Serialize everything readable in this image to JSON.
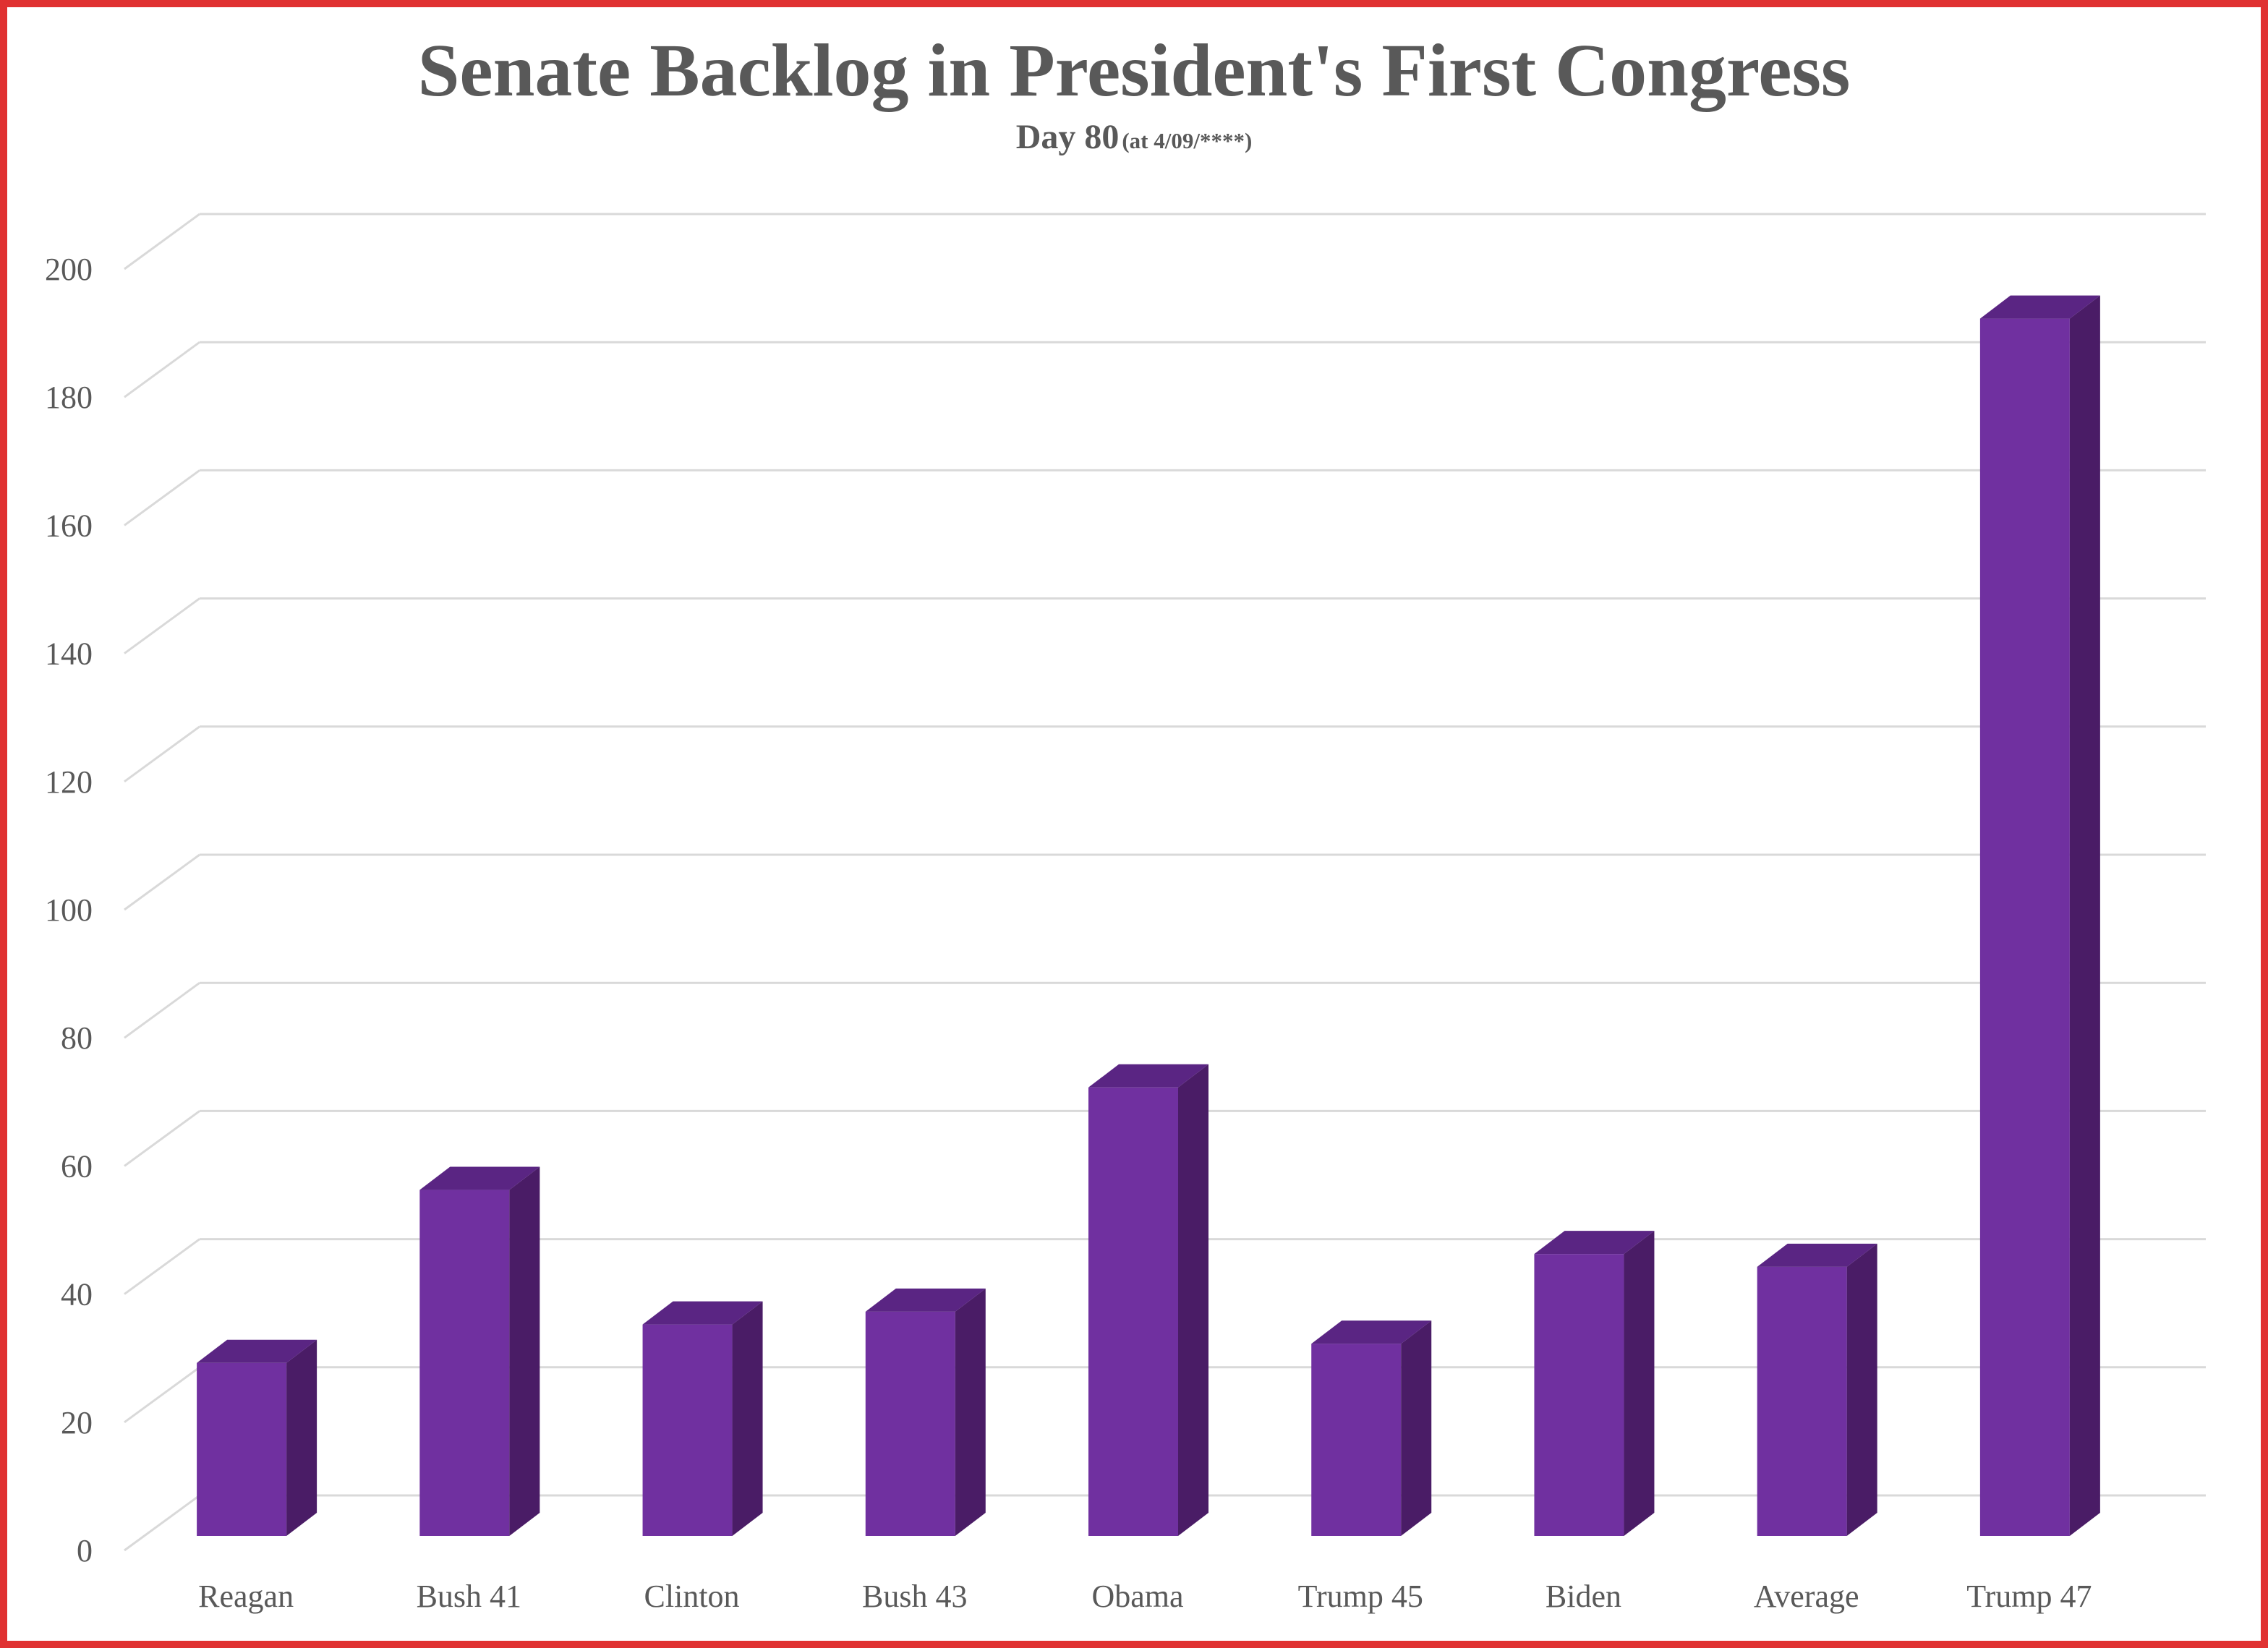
{
  "chart_data": {
    "type": "bar",
    "title": "Senate Backlog in President's First Congress",
    "subtitle_main": "Day 80",
    "subtitle_note": "(at 4/09/****)",
    "categories": [
      "Reagan",
      "Bush 41",
      "Clinton",
      "Bush 43",
      "Obama",
      "Trump 45",
      "Biden",
      "Average",
      "Trump 47"
    ],
    "values": [
      27,
      54,
      33,
      35,
      70,
      30,
      44,
      42,
      190
    ],
    "ylim": [
      0,
      200
    ],
    "yticks": [
      0,
      20,
      40,
      60,
      80,
      100,
      120,
      140,
      160,
      180,
      200
    ],
    "xlabel": "",
    "ylabel": "",
    "grid": true,
    "legend": "none",
    "colors": {
      "bar_front": "#7030a0",
      "bar_side": "#4a1c66",
      "bar_top": "#5a2583",
      "grid": "#d9d9d9",
      "frame": "#e03131",
      "text": "#595959"
    }
  }
}
